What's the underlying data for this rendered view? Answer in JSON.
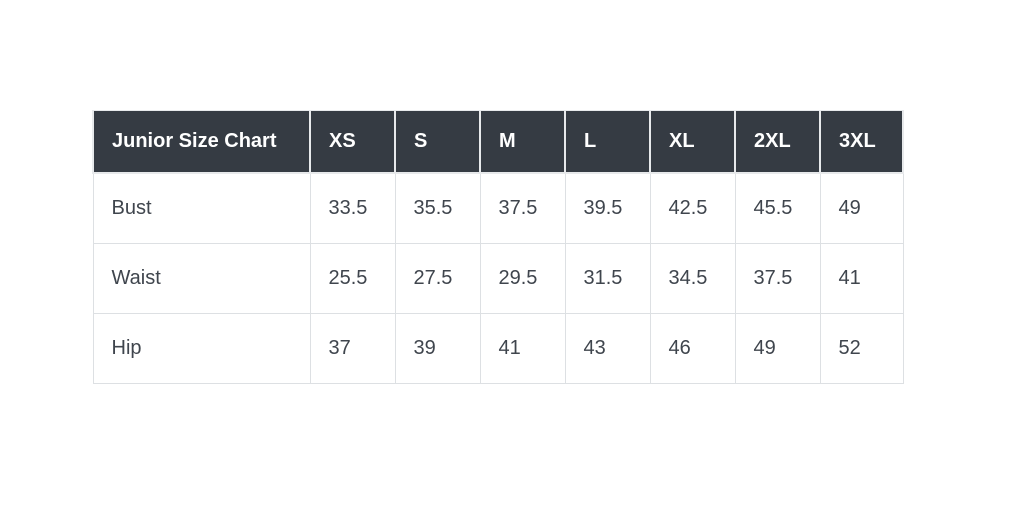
{
  "chart_data": {
    "type": "table",
    "title": "Junior Size Chart",
    "columns": [
      "XS",
      "S",
      "M",
      "L",
      "XL",
      "2XL",
      "3XL"
    ],
    "rows": [
      {
        "label": "Bust",
        "values": [
          "33.5",
          "35.5",
          "37.5",
          "39.5",
          "42.5",
          "45.5",
          "49"
        ]
      },
      {
        "label": "Waist",
        "values": [
          "25.5",
          "27.5",
          "29.5",
          "31.5",
          "34.5",
          "37.5",
          "41"
        ]
      },
      {
        "label": "Hip",
        "values": [
          "37",
          "39",
          "41",
          "43",
          "46",
          "49",
          "52"
        ]
      }
    ]
  },
  "colors": {
    "header_bg": "#353b43",
    "header_text": "#ffffff",
    "body_text": "#3f454d",
    "border": "#dde0e3",
    "page_bg": "#ffffff"
  }
}
